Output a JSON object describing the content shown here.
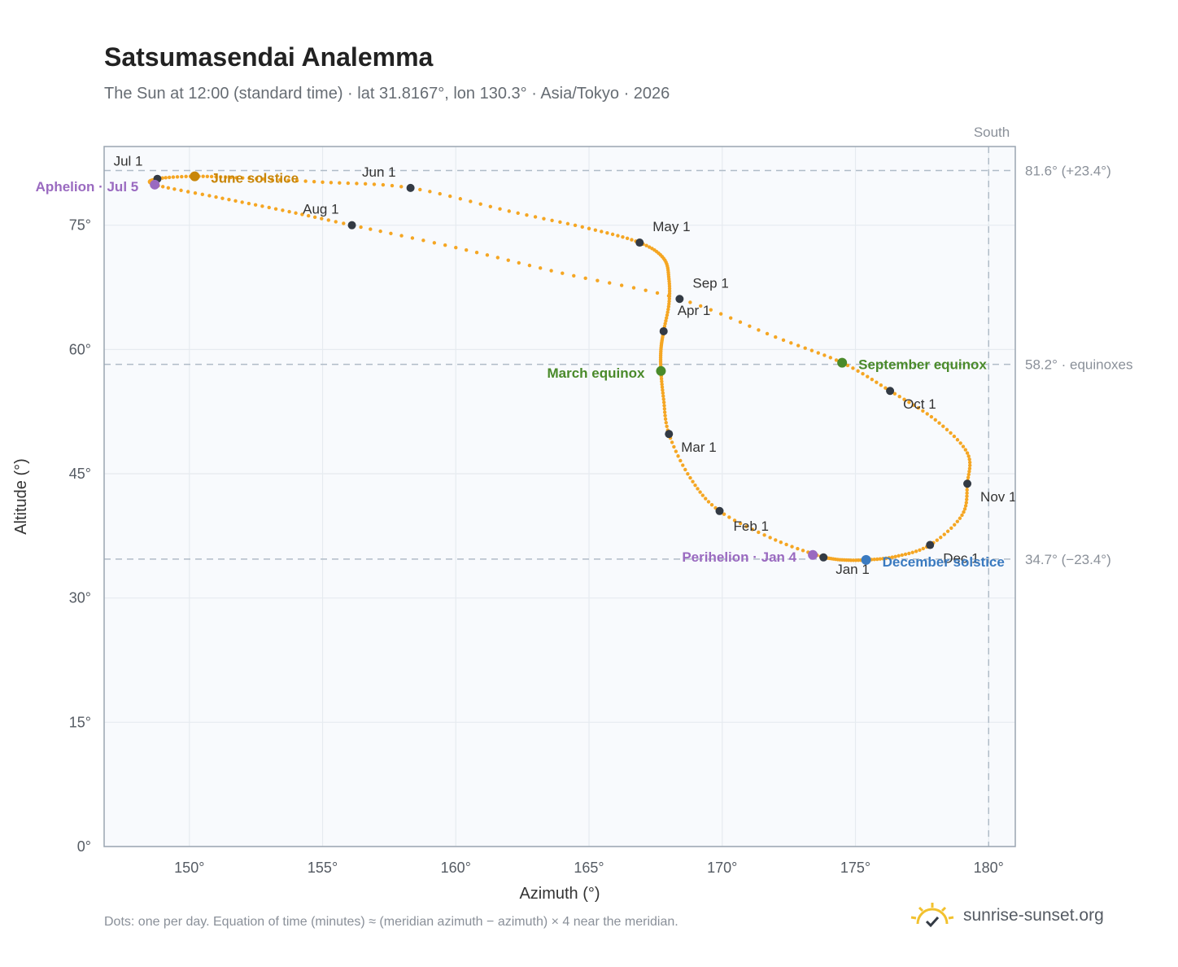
{
  "title": "Satsumasendai Analemma",
  "subtitle": "The Sun at 12:00 (standard time) · lat 31.8167°, lon 130.3° · Asia/Tokyo · 2026",
  "footnote": "Dots: one per day. Equation of time (minutes) ≈ (meridian azimuth − azimuth) × 4 near the meridian.",
  "brand": {
    "name": "sunrise-sunset.org",
    "icon": "sun-check-icon"
  },
  "colors": {
    "curve": "#f5a623",
    "month_dot": "#333a44",
    "june": "#c8860a",
    "march": "#4a8a2a",
    "september": "#4a8a2a",
    "december": "#3a7ac0",
    "aphelion": "#9a6ac0",
    "perihelion": "#9a6ac0",
    "reference": "#b0bcc8",
    "plot_bg": "#f8fafd",
    "grid": "#e6ebf0"
  },
  "chart_data": {
    "type": "scatter",
    "title": "Satsumasendai Analemma",
    "subtitle": "The Sun at 12:00 (standard time) · lat 31.8167°, lon 130.3° · Asia/Tokyo · 2026",
    "xlabel": "Azimuth (°)",
    "ylabel": "Altitude (°)",
    "xlim": [
      146.8,
      181.0
    ],
    "ylim": [
      0,
      84.5
    ],
    "xticks": [
      150,
      155,
      160,
      165,
      170,
      175,
      180
    ],
    "xtick_labels": [
      "150°",
      "155°",
      "160°",
      "165°",
      "170°",
      "175°",
      "180°"
    ],
    "yticks": [
      0,
      15,
      30,
      45,
      60,
      75
    ],
    "ytick_labels": [
      "0°",
      "15°",
      "30°",
      "45°",
      "60°",
      "75°"
    ],
    "grid": true,
    "meridian": {
      "x": 180,
      "label": "South"
    },
    "reference_lines": [
      {
        "y": 81.6,
        "label": "81.6° (+23.4°)"
      },
      {
        "y": 58.2,
        "label": "58.2° · equinoxes"
      },
      {
        "y": 34.7,
        "label": "34.7° (−23.4°)"
      }
    ],
    "month_points": [
      {
        "label": "Jan 1",
        "x": 173.8,
        "y": 34.9
      },
      {
        "label": "Feb 1",
        "x": 169.9,
        "y": 40.5
      },
      {
        "label": "Mar 1",
        "x": 168.0,
        "y": 49.8
      },
      {
        "label": "Apr 1",
        "x": 167.8,
        "y": 62.2
      },
      {
        "label": "May 1",
        "x": 166.9,
        "y": 72.9
      },
      {
        "label": "Jun 1",
        "x": 158.3,
        "y": 79.5
      },
      {
        "label": "Jul 1",
        "x": 148.8,
        "y": 80.6
      },
      {
        "label": "Aug 1",
        "x": 156.1,
        "y": 75.0
      },
      {
        "label": "Sep 1",
        "x": 168.4,
        "y": 66.1
      },
      {
        "label": "Oct 1",
        "x": 176.3,
        "y": 55.0
      },
      {
        "label": "Nov 1",
        "x": 179.2,
        "y": 43.8
      },
      {
        "label": "Dec 1",
        "x": 177.8,
        "y": 36.4
      }
    ],
    "events": [
      {
        "label": "June solstice",
        "x": 150.2,
        "y": 80.9,
        "color": "#c8860a"
      },
      {
        "label": "March equinox",
        "x": 167.7,
        "y": 57.4,
        "color": "#4a8a2a"
      },
      {
        "label": "September equinox",
        "x": 174.5,
        "y": 58.4,
        "color": "#4a8a2a"
      },
      {
        "label": "December solstice",
        "x": 175.4,
        "y": 34.6,
        "color": "#3a7ac0"
      },
      {
        "label": "Aphelion · Jul 5",
        "x": 148.7,
        "y": 79.9,
        "color": "#9a6ac0"
      },
      {
        "label": "Perihelion · Jan 4",
        "x": 173.4,
        "y": 35.2,
        "color": "#9a6ac0"
      }
    ],
    "series": [
      {
        "values": [
          [
            173.8,
            34.9
          ],
          [
            172.0,
            37.0
          ],
          [
            169.9,
            40.5
          ],
          [
            168.8,
            44.5
          ],
          [
            168.0,
            49.8
          ],
          [
            167.8,
            54.0
          ],
          [
            167.7,
            57.4
          ],
          [
            167.7,
            60.0
          ],
          [
            167.8,
            62.2
          ],
          [
            168.0,
            65.5
          ],
          [
            168.0,
            68.5
          ],
          [
            167.8,
            71.0
          ],
          [
            166.9,
            72.9
          ],
          [
            165.0,
            74.6
          ],
          [
            162.0,
            76.7
          ],
          [
            158.3,
            79.5
          ],
          [
            155.0,
            80.2
          ],
          [
            152.0,
            80.7
          ],
          [
            150.2,
            80.9
          ],
          [
            148.8,
            80.6
          ],
          [
            148.7,
            79.9
          ],
          [
            151.0,
            78.4
          ],
          [
            153.5,
            76.8
          ],
          [
            156.1,
            75.0
          ],
          [
            160.0,
            72.3
          ],
          [
            164.0,
            69.2
          ],
          [
            168.4,
            66.1
          ],
          [
            172.0,
            61.5
          ],
          [
            174.5,
            58.4
          ],
          [
            176.3,
            55.0
          ],
          [
            178.0,
            51.5
          ],
          [
            179.2,
            47.5
          ],
          [
            179.2,
            43.8
          ],
          [
            179.0,
            40.0
          ],
          [
            177.8,
            36.4
          ],
          [
            176.5,
            35.0
          ],
          [
            175.4,
            34.6
          ],
          [
            174.5,
            34.6
          ],
          [
            173.8,
            34.9
          ]
        ]
      }
    ]
  }
}
